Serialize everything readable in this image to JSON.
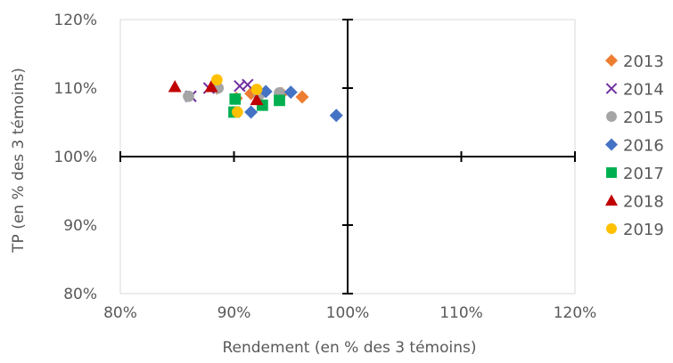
{
  "chart_data": {
    "type": "scatter",
    "xlabel": "Rendement (en % des 3 témoins)",
    "ylabel": "TP (en % des 3 témoins)",
    "xlim": [
      80,
      120
    ],
    "ylim": [
      80,
      120
    ],
    "x_ticks": [
      "80%",
      "90%",
      "100%",
      "110%",
      "120%"
    ],
    "y_ticks": [
      "80%",
      "90%",
      "100%",
      "110%",
      "120%"
    ],
    "grid": false,
    "reference_lines": {
      "x": 100,
      "y": 100
    },
    "legend_position": "right",
    "series": [
      {
        "name": "2013",
        "marker": "diamond",
        "color": "#ED7D31",
        "points": [
          [
            88.5,
            110.0
          ],
          [
            90.2,
            108.5
          ],
          [
            91.5,
            109.2
          ],
          [
            94.2,
            109.2
          ],
          [
            96.0,
            108.7
          ]
        ]
      },
      {
        "name": "2014",
        "marker": "x",
        "color": "#7030A0",
        "points": [
          [
            86.2,
            108.8
          ],
          [
            87.8,
            110.0
          ],
          [
            90.5,
            110.3
          ],
          [
            91.2,
            110.5
          ]
        ]
      },
      {
        "name": "2015",
        "marker": "circle",
        "color": "#A5A5A5",
        "points": [
          [
            86.0,
            108.8
          ],
          [
            88.6,
            110.0
          ],
          [
            94.0,
            109.3
          ],
          [
            92.2,
            109.0
          ]
        ]
      },
      {
        "name": "2016",
        "marker": "diamond",
        "color": "#4472C4",
        "points": [
          [
            91.5,
            106.5
          ],
          [
            92.8,
            109.5
          ],
          [
            95.0,
            109.4
          ],
          [
            99.0,
            106.0
          ]
        ]
      },
      {
        "name": "2017",
        "marker": "square",
        "color": "#00B050",
        "points": [
          [
            90.1,
            108.4
          ],
          [
            90.0,
            106.5
          ],
          [
            92.5,
            107.5
          ],
          [
            94.0,
            108.2
          ]
        ]
      },
      {
        "name": "2018",
        "marker": "triangle",
        "color": "#C00000",
        "points": [
          [
            84.8,
            110.2
          ],
          [
            88.0,
            110.2
          ],
          [
            92.0,
            108.3
          ]
        ]
      },
      {
        "name": "2019",
        "marker": "circle",
        "color": "#FFC000",
        "points": [
          [
            88.5,
            111.2
          ],
          [
            92.0,
            109.8
          ],
          [
            90.3,
            106.5
          ]
        ]
      }
    ]
  }
}
